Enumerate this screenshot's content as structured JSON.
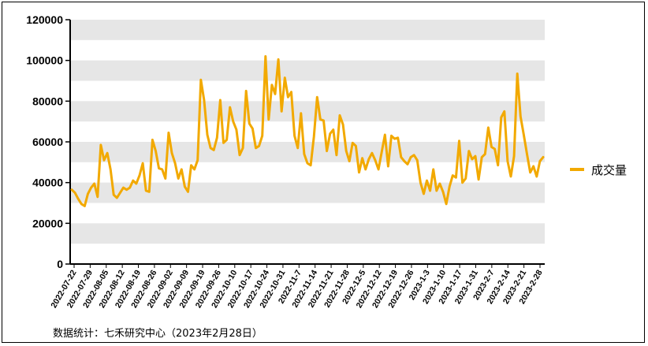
{
  "chart_data": {
    "type": "line",
    "title": "",
    "xlabel": "",
    "ylabel": "",
    "ylim": [
      0,
      120000
    ],
    "yticks": [
      0,
      20000,
      40000,
      60000,
      80000,
      100000,
      120000
    ],
    "ytick_labels": [
      "0",
      "20000",
      "40000",
      "60000",
      "80000",
      "100000",
      "120000"
    ],
    "grid": "horizontal alternating gray bands",
    "legend_position": "right",
    "xtick_labels": [
      "2022-07-22",
      "2022-07-29",
      "2022-08-05",
      "2022-08-12",
      "2022-08-19",
      "2022-08-26",
      "2022-09-02",
      "2022-09-09",
      "2022-09-19",
      "2022-09-26",
      "2022-10-10",
      "2022-10-17",
      "2022-10-24",
      "2022-10-31",
      "2022-11-7",
      "2022-11-14",
      "2022-11-21",
      "2022-11-28",
      "2022-12-5",
      "2022-12-12",
      "2022-12-19",
      "2022-12-26",
      "2023-1-3",
      "2023-1-10",
      "2023-1-17",
      "2023-1-31",
      "2023-2-7",
      "2023-2-14",
      "2023-2-21",
      "2023-2-28"
    ],
    "series": [
      {
        "name": "成交量",
        "color": "#f2a900",
        "values": [
          36500,
          35000,
          32000,
          29500,
          28500,
          34500,
          37500,
          39500,
          33000,
          58500,
          51000,
          54500,
          46500,
          34000,
          32500,
          35000,
          37500,
          36500,
          37500,
          41000,
          39500,
          43500,
          49500,
          36000,
          35500,
          61000,
          55500,
          47000,
          46500,
          42000,
          64500,
          54500,
          49500,
          42000,
          46500,
          38000,
          35500,
          48500,
          46500,
          51000,
          90500,
          80500,
          63500,
          57000,
          56000,
          62000,
          80500,
          59500,
          61000,
          77000,
          70000,
          66000,
          53500,
          57000,
          85000,
          69000,
          66500,
          57000,
          58000,
          63000,
          102000,
          71000,
          88000,
          83500,
          100500,
          75000,
          91500,
          82000,
          84500,
          63000,
          57000,
          74000,
          54000,
          49500,
          48500,
          62500,
          82000,
          71000,
          70500,
          55500,
          64000,
          66000,
          53500,
          73000,
          68500,
          55500,
          50500,
          59500,
          58000,
          45000,
          52000,
          46500,
          51500,
          54500,
          51000,
          46500,
          55000,
          63500,
          48000,
          63000,
          61500,
          62000,
          52500,
          50500,
          49000,
          52500,
          53500,
          51000,
          40000,
          34500,
          41000,
          36000,
          46500,
          36000,
          39500,
          35500,
          29500,
          38000,
          43500,
          42500,
          60500,
          40000,
          42000,
          55500,
          51500,
          53000,
          41500,
          52500,
          54000,
          67000,
          57500,
          56500,
          48500,
          72000,
          75000,
          50500,
          43000,
          53000,
          93500,
          72500,
          63500,
          54000,
          45000,
          48000,
          43000,
          50500,
          52500
        ]
      }
    ]
  },
  "legend": {
    "label": "成交量"
  },
  "source_note": "数据统计：七禾研究中心（2023年2月28日）"
}
